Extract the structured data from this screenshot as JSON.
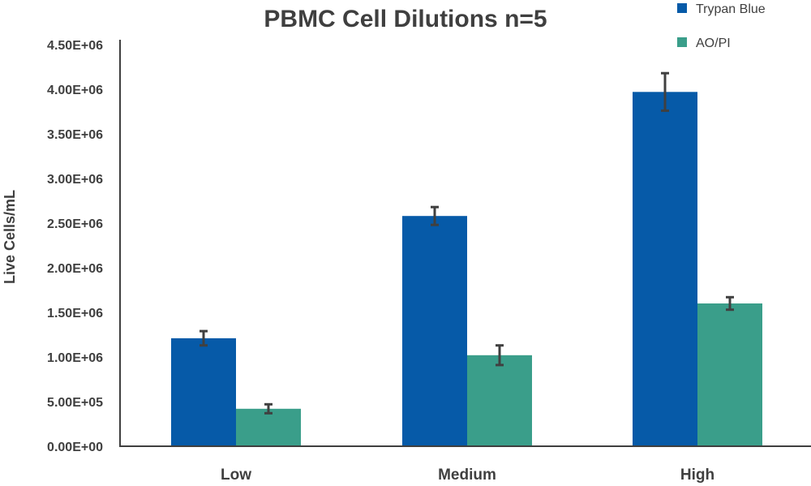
{
  "chart_data": {
    "type": "bar",
    "title": "PBMC Cell Dilutions n=5",
    "xlabel": "",
    "ylabel": "Live Cells/mL",
    "categories": [
      "Low",
      "Medium",
      "High"
    ],
    "series": [
      {
        "name": "Trypan Blue",
        "color": "#065aa8",
        "values": [
          1210000,
          2580000,
          3970000
        ],
        "error": [
          80000,
          100000,
          210000
        ]
      },
      {
        "name": "AO/PI",
        "color": "#3a9e8a",
        "values": [
          420000,
          1020000,
          1600000
        ],
        "error": [
          50000,
          110000,
          70000
        ]
      }
    ],
    "ylim": [
      0,
      4500000
    ],
    "yticks": [
      0,
      500000,
      1000000,
      1500000,
      2000000,
      2500000,
      3000000,
      3500000,
      4000000,
      4500000
    ],
    "ytick_labels": [
      "0.00E+00",
      "5.00E+05",
      "1.00E+06",
      "1.50E+06",
      "2.00E+06",
      "2.50E+06",
      "3.00E+06",
      "3.50E+06",
      "4.00E+06",
      "4.50E+06"
    ],
    "grid": false,
    "legend_position": "top-right"
  }
}
